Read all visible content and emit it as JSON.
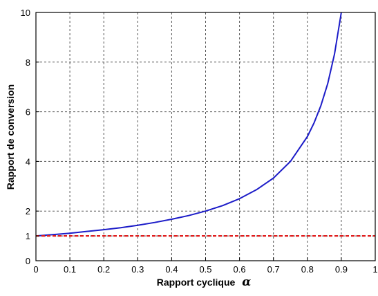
{
  "chart_data": {
    "type": "line",
    "xlabel": "Rapport cyclique",
    "xlabel_symbol": "α",
    "ylabel": "Rapport de conversion",
    "xlim": [
      0,
      1
    ],
    "ylim": [
      0,
      10
    ],
    "grid": true,
    "x_ticks": [
      "0",
      "0.1",
      "0.2",
      "0.3",
      "0.4",
      "0.5",
      "0.6",
      "0.7",
      "0.8",
      "0.9",
      "1"
    ],
    "y_ticks": [
      "0",
      "1",
      "2",
      "4",
      "6",
      "8",
      "10"
    ],
    "series": [
      {
        "color": "#1c1cc8",
        "style": "solid",
        "x": [
          0,
          0.05,
          0.1,
          0.15,
          0.2,
          0.25,
          0.3,
          0.35,
          0.4,
          0.45,
          0.5,
          0.55,
          0.6,
          0.65,
          0.7,
          0.75,
          0.8,
          0.82,
          0.84,
          0.86,
          0.88,
          0.9
        ],
        "y": [
          1.0,
          1.05,
          1.11,
          1.18,
          1.25,
          1.33,
          1.43,
          1.54,
          1.67,
          1.82,
          2.0,
          2.22,
          2.5,
          2.86,
          3.33,
          4.0,
          5.0,
          5.56,
          6.25,
          7.14,
          8.33,
          10.0
        ]
      },
      {
        "color": "#e01e1e",
        "style": "dashed",
        "x": [
          0,
          1
        ],
        "y": [
          1,
          1
        ]
      }
    ]
  }
}
